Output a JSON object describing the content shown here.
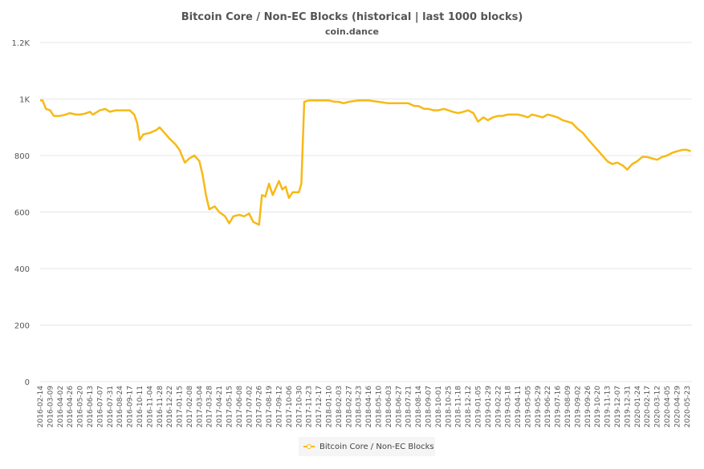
{
  "chart_data": {
    "type": "line",
    "title": "Bitcoin Core / Non-EC Blocks (historical | last 1000 blocks)",
    "subtitle": "coin.dance",
    "xlabel": "",
    "ylabel": "",
    "ylim": [
      0,
      1200
    ],
    "yticks": [
      {
        "value": 0,
        "label": "0"
      },
      {
        "value": 200,
        "label": "200"
      },
      {
        "value": 400,
        "label": "400"
      },
      {
        "value": 600,
        "label": "600"
      },
      {
        "value": 800,
        "label": "800"
      },
      {
        "value": 1000,
        "label": "1K"
      },
      {
        "value": 1200,
        "label": "1.2K"
      }
    ],
    "xlim": [
      "2016-02-14",
      "2020-06-04"
    ],
    "x_tick_labels": [
      "2016-02-14",
      "2016-03-09",
      "2016-04-02",
      "2016-04-26",
      "2016-05-20",
      "2016-06-13",
      "2016-07-07",
      "2016-07-31",
      "2016-08-24",
      "2016-09-17",
      "2016-10-11",
      "2016-11-04",
      "2016-11-28",
      "2016-12-22",
      "2017-01-15",
      "2017-02-08",
      "2017-03-04",
      "2017-03-28",
      "2017-04-21",
      "2017-05-15",
      "2017-06-08",
      "2017-07-02",
      "2017-07-26",
      "2017-08-19",
      "2017-09-12",
      "2017-10-06",
      "2017-10-30",
      "2017-11-23",
      "2017-12-17",
      "2018-01-10",
      "2018-02-03",
      "2018-02-27",
      "2018-03-23",
      "2018-04-16",
      "2018-05-10",
      "2018-06-03",
      "2018-06-27",
      "2018-07-21",
      "2018-08-14",
      "2018-09-07",
      "2018-10-01",
      "2018-10-25",
      "2018-11-18",
      "2018-12-12",
      "2019-01-05",
      "2019-01-29",
      "2019-02-22",
      "2019-03-18",
      "2019-04-11",
      "2019-05-05",
      "2019-05-29",
      "2019-06-22",
      "2019-07-16",
      "2019-08-09",
      "2019-09-02",
      "2019-09-26",
      "2019-10-20",
      "2019-11-13",
      "2019-12-07",
      "2019-12-31",
      "2020-01-24",
      "2020-02-17",
      "2020-03-12",
      "2020-04-05",
      "2020-04-29",
      "2020-05-23"
    ],
    "grid": true,
    "legend_position": "bottom-center",
    "series": [
      {
        "name": "Bitcoin Core / Non-EC Blocks",
        "color": "#f7b916",
        "points": [
          [
            "2016-02-14",
            995
          ],
          [
            "2016-02-20",
            995
          ],
          [
            "2016-02-28",
            965
          ],
          [
            "2016-03-09",
            960
          ],
          [
            "2016-03-18",
            940
          ],
          [
            "2016-04-02",
            940
          ],
          [
            "2016-04-15",
            945
          ],
          [
            "2016-04-26",
            950
          ],
          [
            "2016-05-10",
            945
          ],
          [
            "2016-05-20",
            945
          ],
          [
            "2016-06-01",
            948
          ],
          [
            "2016-06-13",
            955
          ],
          [
            "2016-06-20",
            945
          ],
          [
            "2016-07-07",
            960
          ],
          [
            "2016-07-20",
            965
          ],
          [
            "2016-07-31",
            955
          ],
          [
            "2016-08-15",
            960
          ],
          [
            "2016-08-24",
            960
          ],
          [
            "2016-09-05",
            960
          ],
          [
            "2016-09-17",
            960
          ],
          [
            "2016-09-28",
            945
          ],
          [
            "2016-10-05",
            915
          ],
          [
            "2016-10-11",
            855
          ],
          [
            "2016-10-20",
            875
          ],
          [
            "2016-11-04",
            880
          ],
          [
            "2016-11-20",
            890
          ],
          [
            "2016-11-28",
            900
          ],
          [
            "2016-12-10",
            880
          ],
          [
            "2016-12-22",
            860
          ],
          [
            "2017-01-05",
            840
          ],
          [
            "2017-01-15",
            820
          ],
          [
            "2017-01-28",
            775
          ],
          [
            "2017-02-08",
            790
          ],
          [
            "2017-02-20",
            800
          ],
          [
            "2017-03-04",
            780
          ],
          [
            "2017-03-12",
            730
          ],
          [
            "2017-03-20",
            660
          ],
          [
            "2017-03-28",
            610
          ],
          [
            "2017-04-10",
            620
          ],
          [
            "2017-04-21",
            600
          ],
          [
            "2017-05-05",
            585
          ],
          [
            "2017-05-15",
            560
          ],
          [
            "2017-05-25",
            585
          ],
          [
            "2017-06-08",
            590
          ],
          [
            "2017-06-20",
            585
          ],
          [
            "2017-07-02",
            595
          ],
          [
            "2017-07-12",
            565
          ],
          [
            "2017-07-26",
            555
          ],
          [
            "2017-08-02",
            660
          ],
          [
            "2017-08-10",
            655
          ],
          [
            "2017-08-19",
            700
          ],
          [
            "2017-08-28",
            660
          ],
          [
            "2017-09-12",
            710
          ],
          [
            "2017-09-20",
            680
          ],
          [
            "2017-09-28",
            690
          ],
          [
            "2017-10-06",
            650
          ],
          [
            "2017-10-15",
            670
          ],
          [
            "2017-10-30",
            670
          ],
          [
            "2017-11-05",
            700
          ],
          [
            "2017-11-12",
            990
          ],
          [
            "2017-11-23",
            995
          ],
          [
            "2017-12-17",
            995
          ],
          [
            "2018-01-10",
            995
          ],
          [
            "2018-01-25",
            990
          ],
          [
            "2018-02-03",
            990
          ],
          [
            "2018-02-15",
            985
          ],
          [
            "2018-02-27",
            990
          ],
          [
            "2018-03-23",
            995
          ],
          [
            "2018-04-16",
            995
          ],
          [
            "2018-05-10",
            990
          ],
          [
            "2018-06-03",
            985
          ],
          [
            "2018-06-27",
            985
          ],
          [
            "2018-07-21",
            985
          ],
          [
            "2018-08-05",
            975
          ],
          [
            "2018-08-14",
            975
          ],
          [
            "2018-08-28",
            965
          ],
          [
            "2018-09-07",
            965
          ],
          [
            "2018-09-20",
            960
          ],
          [
            "2018-10-01",
            960
          ],
          [
            "2018-10-15",
            965
          ],
          [
            "2018-10-25",
            960
          ],
          [
            "2018-11-05",
            955
          ],
          [
            "2018-11-18",
            950
          ],
          [
            "2018-12-01",
            955
          ],
          [
            "2018-12-12",
            960
          ],
          [
            "2018-12-25",
            950
          ],
          [
            "2019-01-05",
            920
          ],
          [
            "2019-01-18",
            935
          ],
          [
            "2019-01-29",
            925
          ],
          [
            "2019-02-10",
            935
          ],
          [
            "2019-02-22",
            940
          ],
          [
            "2019-03-05",
            940
          ],
          [
            "2019-03-18",
            945
          ],
          [
            "2019-04-01",
            945
          ],
          [
            "2019-04-11",
            945
          ],
          [
            "2019-04-25",
            940
          ],
          [
            "2019-05-05",
            935
          ],
          [
            "2019-05-15",
            945
          ],
          [
            "2019-05-29",
            940
          ],
          [
            "2019-06-10",
            935
          ],
          [
            "2019-06-22",
            945
          ],
          [
            "2019-07-05",
            940
          ],
          [
            "2019-07-16",
            935
          ],
          [
            "2019-07-28",
            925
          ],
          [
            "2019-08-09",
            920
          ],
          [
            "2019-08-20",
            915
          ],
          [
            "2019-09-02",
            895
          ],
          [
            "2019-09-15",
            880
          ],
          [
            "2019-09-26",
            860
          ],
          [
            "2019-10-08",
            840
          ],
          [
            "2019-10-20",
            820
          ],
          [
            "2019-11-01",
            800
          ],
          [
            "2019-11-13",
            780
          ],
          [
            "2019-11-25",
            770
          ],
          [
            "2019-12-07",
            775
          ],
          [
            "2019-12-20",
            765
          ],
          [
            "2019-12-31",
            750
          ],
          [
            "2020-01-12",
            770
          ],
          [
            "2020-01-24",
            780
          ],
          [
            "2020-02-05",
            795
          ],
          [
            "2020-02-17",
            795
          ],
          [
            "2020-02-28",
            790
          ],
          [
            "2020-03-12",
            785
          ],
          [
            "2020-03-24",
            795
          ],
          [
            "2020-04-05",
            800
          ],
          [
            "2020-04-18",
            810
          ],
          [
            "2020-04-29",
            815
          ],
          [
            "2020-05-12",
            820
          ],
          [
            "2020-05-23",
            820
          ],
          [
            "2020-06-01",
            815
          ]
        ]
      }
    ]
  }
}
